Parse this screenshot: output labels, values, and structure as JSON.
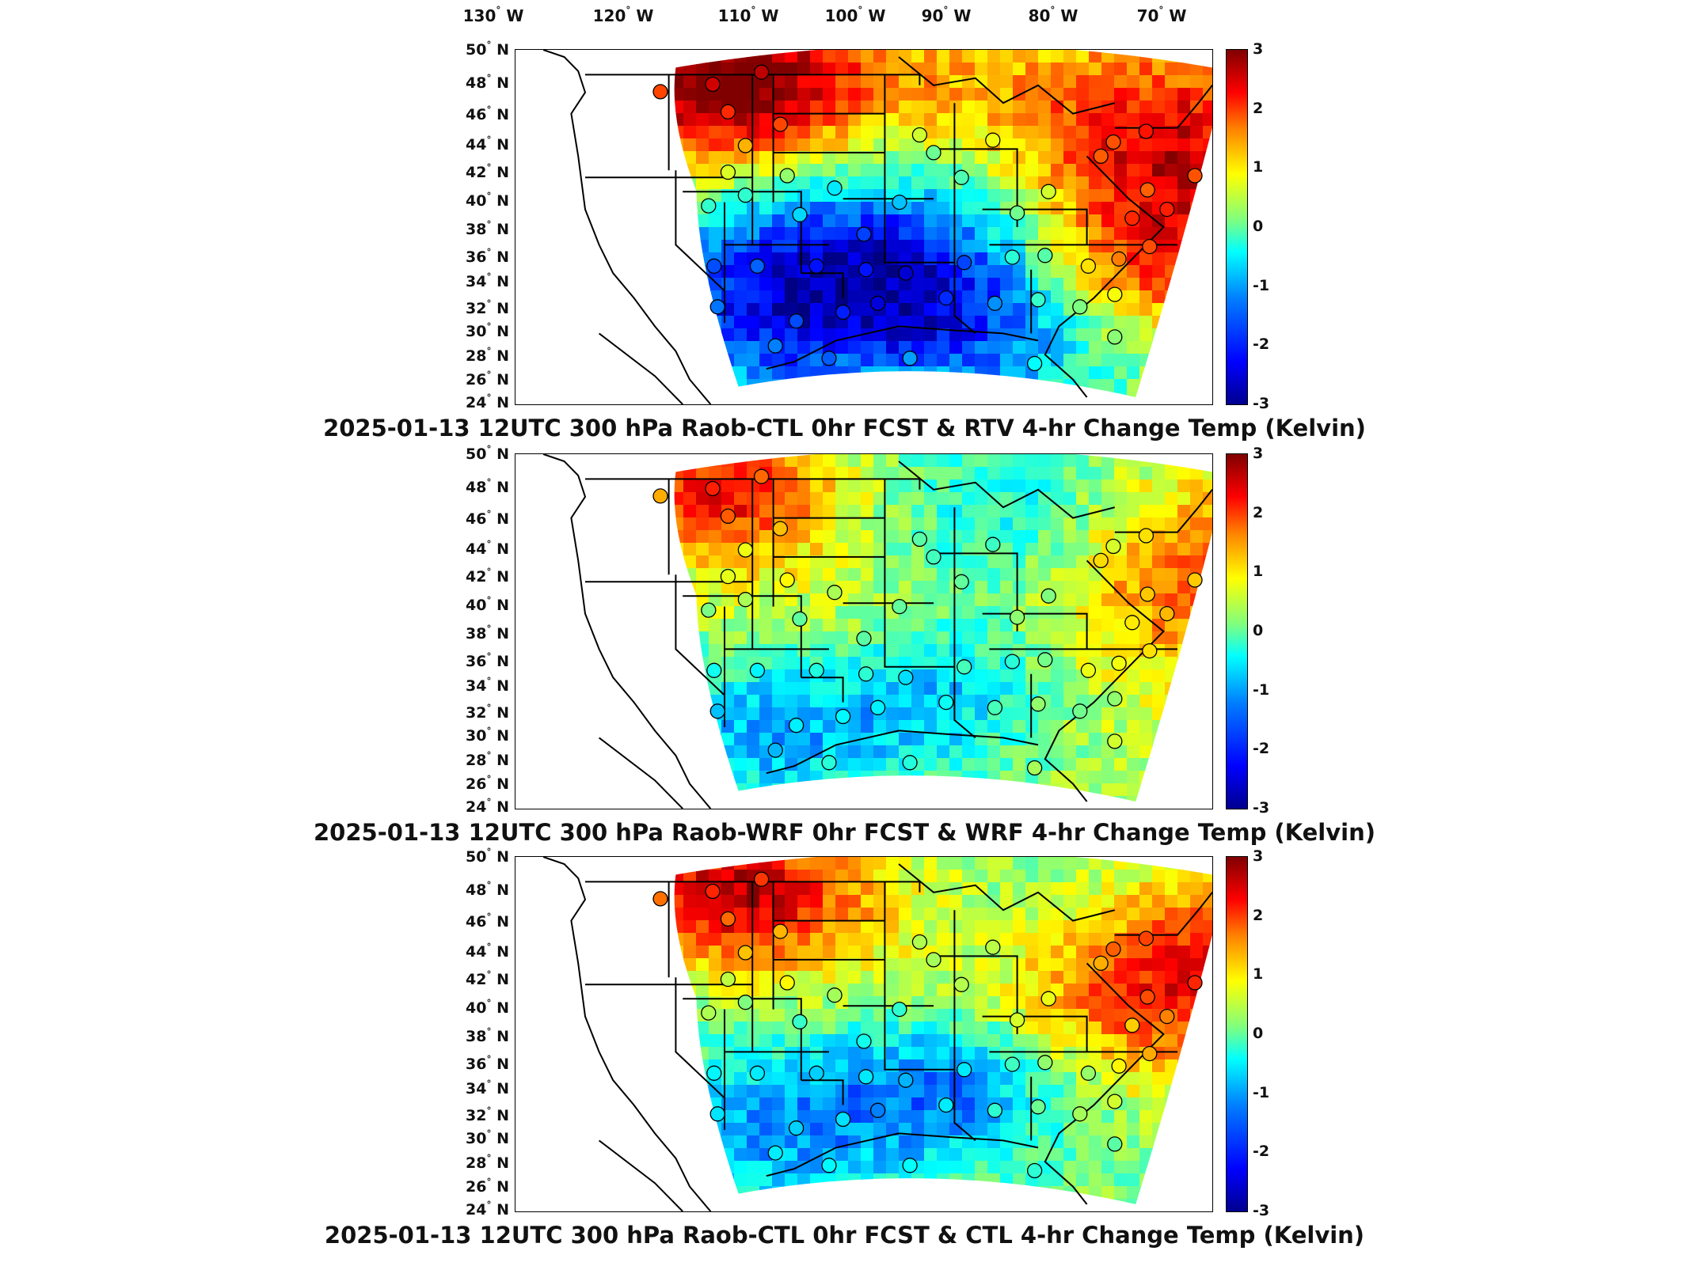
{
  "lon_labels": [
    "130",
    "120",
    "110",
    "100",
    "90",
    "80",
    "70"
  ],
  "lon_suffix": "W",
  "lat_labels": [
    "50",
    "48",
    "46",
    "44",
    "42",
    "40",
    "38",
    "36",
    "34",
    "32",
    "30",
    "28",
    "26",
    "24"
  ],
  "lat_suffix": "N",
  "degree_symbol": "°",
  "colorbar_ticks": [
    "3",
    "2",
    "1",
    "0",
    "-1",
    "-2",
    "-3"
  ],
  "colorbar": {
    "min": -3,
    "max": 3,
    "colormap": "jet",
    "unit": "Kelvin"
  },
  "panels": [
    {
      "title": "2025-01-13 12UTC 300 hPa Raob-CTL 0hr FCST & RTV 4-hr Change Temp (Kelvin)"
    },
    {
      "title": "2025-01-13 12UTC 300 hPa Raob-WRF 0hr FCST & WRF 4-hr Change Temp (Kelvin)"
    },
    {
      "title": "2025-01-13 12UTC 300 hPa Raob-CTL 0hr FCST & CTL 4-hr Change Temp (Kelvin)"
    }
  ]
}
